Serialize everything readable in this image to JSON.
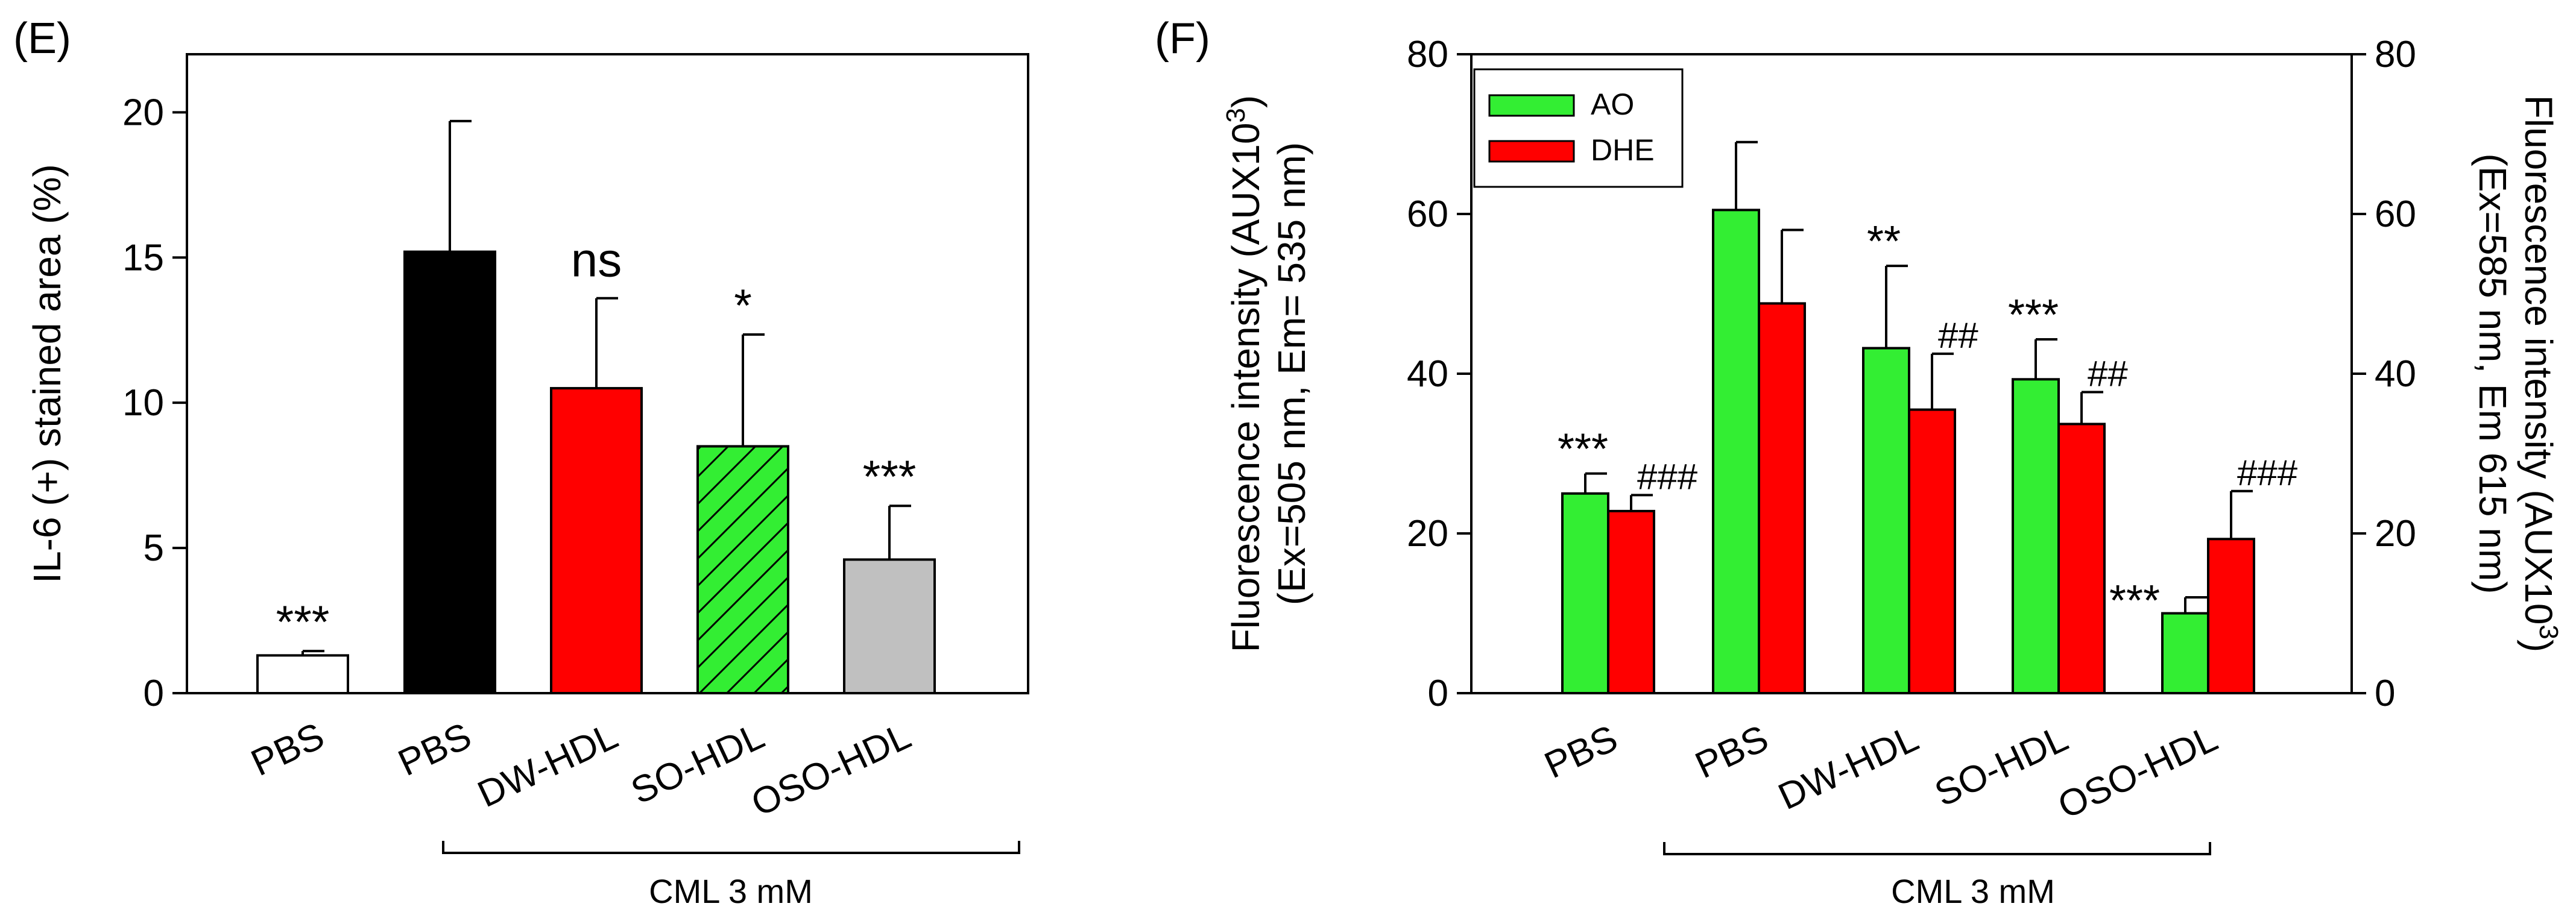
{
  "colors": {
    "white": "#ffffff",
    "black": "#000000",
    "red": "#ff0000",
    "green": "#33ee33",
    "gray": "#c0c0c0"
  },
  "chart_data": [
    {
      "panel_label": "(E)",
      "type": "bar",
      "categories": [
        "PBS",
        "PBS",
        "DW-HDL",
        "SO-HDL",
        "OSO-HDL"
      ],
      "values": [
        1.3,
        15.2,
        10.5,
        8.5,
        4.6
      ],
      "errors": [
        0.15,
        4.5,
        3.1,
        3.85,
        1.85
      ],
      "significance": [
        "***",
        "",
        "ns",
        "*",
        "***"
      ],
      "fills": [
        "white",
        "black",
        "red",
        "green-hatched",
        "gray"
      ],
      "ylabel": "IL-6 (+) stained area (%)",
      "ylim": [
        0,
        22
      ],
      "yticks": [
        0,
        5,
        10,
        15,
        20
      ],
      "group_label": "CML 3 mM",
      "group_span": [
        "PBS",
        "OSO-HDL"
      ]
    },
    {
      "panel_label": "(F)",
      "type": "bar",
      "categories": [
        "PBS",
        "PBS",
        "DW-HDL",
        "SO-HDL",
        "OSO-HDL"
      ],
      "series": [
        {
          "name": "AO",
          "color": "green",
          "values": [
            25.0,
            60.5,
            43.2,
            39.3,
            10.0
          ],
          "errors": [
            2.5,
            8.5,
            10.3,
            5.0,
            2.0
          ],
          "significance": [
            "***",
            "",
            "**",
            "***",
            "***"
          ]
        },
        {
          "name": "DHE",
          "color": "red",
          "values": [
            22.8,
            48.8,
            35.5,
            33.7,
            19.3
          ],
          "errors": [
            2.0,
            9.2,
            7.0,
            4.0,
            6.0
          ],
          "significance": [
            "###",
            "",
            "##",
            "##",
            "###"
          ]
        }
      ],
      "ylabel_left_line1": "Fluorescence intensity (AUX10",
      "ylabel_left_sup": "3",
      "ylabel_left_close": ")",
      "ylabel_left_line2": "(Ex=505 nm, Em= 535 nm)",
      "ylabel_right_line1": "Fluorescence intensity (AUX10",
      "ylabel_right_sup": "3",
      "ylabel_right_close": ")",
      "ylabel_right_line2": "(Ex=585 nm, Em 615 nm)",
      "ylim": [
        0,
        80
      ],
      "yticks": [
        0,
        20,
        40,
        60,
        80
      ],
      "legend": [
        "AO",
        "DHE"
      ],
      "legend_position": "top-left",
      "group_label": "CML 3 mM",
      "group_span": [
        "PBS",
        "OSO-HDL"
      ]
    }
  ]
}
